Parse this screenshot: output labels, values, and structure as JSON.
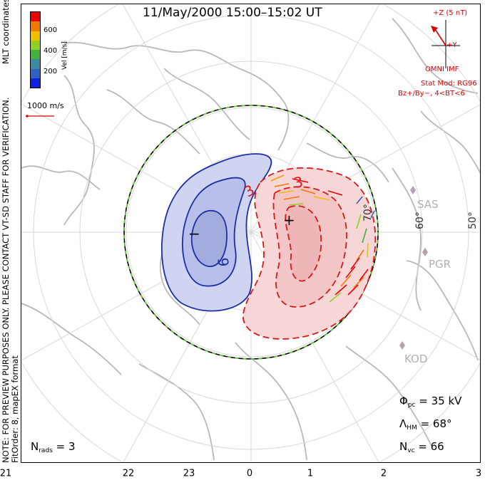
{
  "title": "11/May/2000 15:00–15:02 UT",
  "side_note_line1": "NOTE: FOR PREVIEW PURPOSES ONLY. PLEASE CONTACT VT-SD STAFF FOR VERIFICATION.",
  "side_note_line2": "FitOrder: 8, mapEX format",
  "coord_label": "MLT coordinates",
  "colorbar": {
    "label": "Vel [m/s]",
    "ticks": [
      "600",
      "400",
      "200"
    ],
    "colors": [
      "#ee0000",
      "#f07a00",
      "#f0c000",
      "#90d020",
      "#40b040",
      "#3a8aa0",
      "#3060c0",
      "#1020e0"
    ]
  },
  "scale_vector": {
    "label": "1000 m/s",
    "color": "#dd0000"
  },
  "imf": {
    "label": "+Z (5 nT)",
    "y_label": "+Y",
    "source": "OMNI IMF",
    "model_line1": "Stat Mod: RG96",
    "model_line2": "Bz+/By−, 4<BT<6"
  },
  "stations": [
    "SAS",
    "PGR",
    "KOD"
  ],
  "latitude_labels": [
    "60°",
    "50°",
    "70°"
  ],
  "contours": {
    "neg_label": "6",
    "pos_label_1": "3",
    "pos_label_2": "3",
    "min_marker": "−",
    "max_marker": "+"
  },
  "stats": {
    "phi_symbol": "Φ",
    "phi_sub": "pc",
    "phi_value": "= 35 kV",
    "lambda_symbol": "Λ",
    "lambda_sub": "HM",
    "lambda_value": "= 68°",
    "nvc_symbol": "N",
    "nvc_sub": "vc",
    "nvc_value": "= 66",
    "nrads_symbol": "N",
    "nrads_sub": "rads",
    "nrads_value": "= 3"
  },
  "mlt_labels": [
    "21",
    "22",
    "23",
    "0",
    "1",
    "2",
    "3"
  ]
}
